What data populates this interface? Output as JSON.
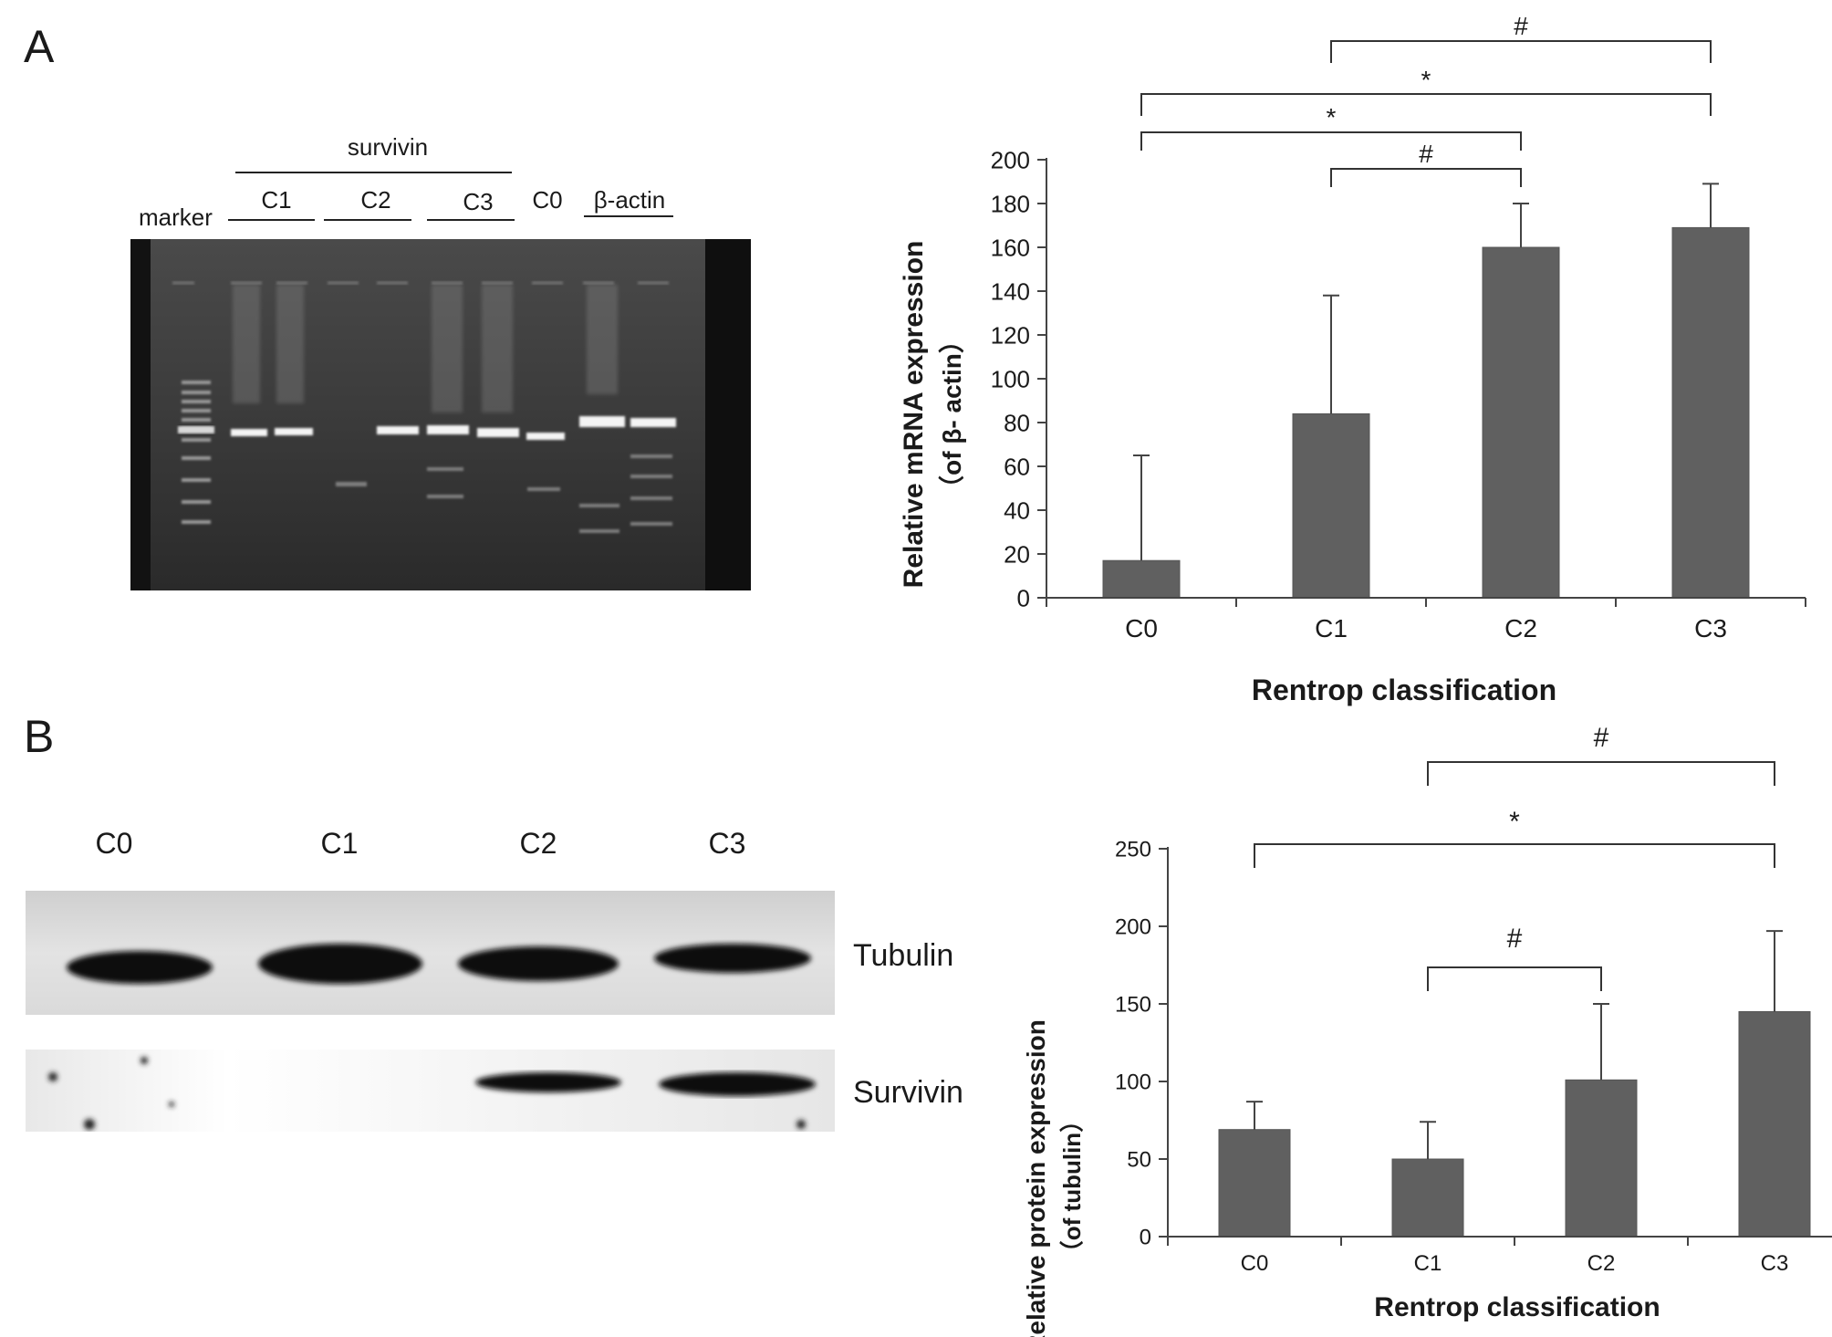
{
  "panel_a": {
    "letter": "A",
    "gel": {
      "survivin_label": "survivin",
      "marker_label": "marker",
      "lane_groups": [
        "C1",
        "C2",
        "C3"
      ],
      "c0_label": "C0",
      "actin_label": "β-actin"
    }
  },
  "panel_b": {
    "letter": "B",
    "blot": {
      "lanes": [
        "C0",
        "C1",
        "C2",
        "C3"
      ],
      "row_labels": [
        "Tubulin",
        "Survivin"
      ]
    }
  },
  "chart_data": [
    {
      "type": "bar",
      "categories": [
        "C0",
        "C1",
        "C2",
        "C3"
      ],
      "values": [
        17,
        84,
        160,
        169
      ],
      "errors": [
        48,
        54,
        20,
        20
      ],
      "title": "",
      "xlabel": "Rentrop classification",
      "ylabel": "Relative mRNA expression",
      "ylabel_sub": "（of β- actin）",
      "ylim": [
        0,
        200
      ],
      "yticks": [
        0,
        20,
        40,
        60,
        80,
        100,
        120,
        140,
        160,
        180,
        200
      ],
      "bar_color": "#606060",
      "grid": false,
      "significance": [
        {
          "from": 1,
          "to": 2,
          "symbol": "#"
        },
        {
          "from": 0,
          "to": 2,
          "symbol": "*"
        },
        {
          "from": 0,
          "to": 3,
          "symbol": "*"
        },
        {
          "from": 1,
          "to": 3,
          "symbol": "#"
        }
      ]
    },
    {
      "type": "bar",
      "categories": [
        "C0",
        "C1",
        "C2",
        "C3"
      ],
      "values": [
        69,
        50,
        101,
        145
      ],
      "errors": [
        18,
        24,
        49,
        52
      ],
      "title": "",
      "xlabel": "Rentrop classification",
      "ylabel": "Relative protein expression",
      "ylabel_sub": "（of tubulin）",
      "ylim": [
        0,
        250
      ],
      "yticks": [
        0,
        50,
        100,
        150,
        200,
        250
      ],
      "bar_color": "#606060",
      "grid": false,
      "significance": [
        {
          "from": 1,
          "to": 2,
          "symbol": "#"
        },
        {
          "from": 0,
          "to": 3,
          "symbol": "*"
        },
        {
          "from": 1,
          "to": 3,
          "symbol": "#"
        }
      ]
    }
  ]
}
